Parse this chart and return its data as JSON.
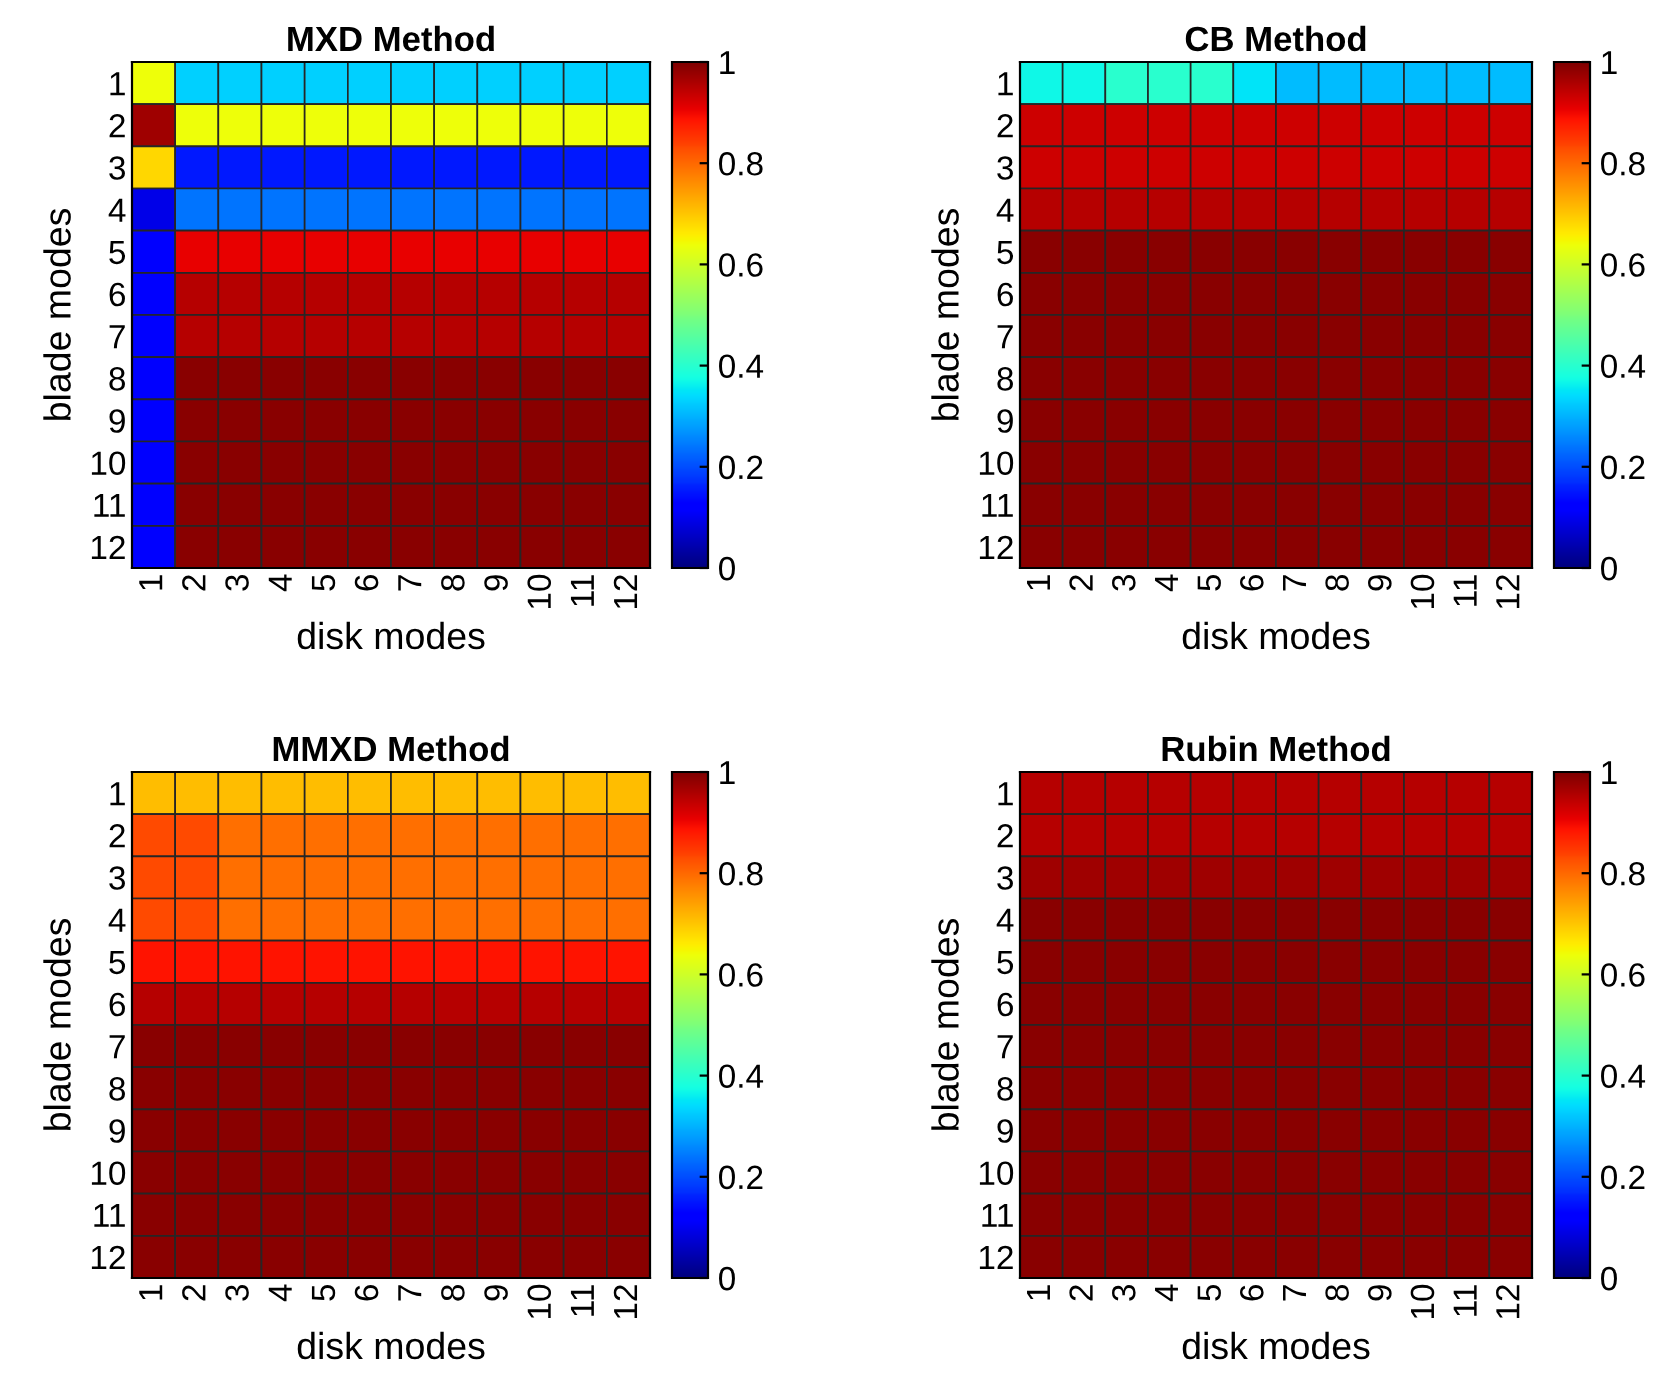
{
  "chart_data": [
    {
      "type": "heatmap",
      "title": "MXD Method",
      "xlabel": "disk modes",
      "ylabel": "blade modes",
      "categories": [
        "1",
        "2",
        "3",
        "4",
        "5",
        "6",
        "7",
        "8",
        "9",
        "10",
        "11",
        "12"
      ],
      "y_categories": [
        "1",
        "2",
        "3",
        "4",
        "5",
        "6",
        "7",
        "8",
        "9",
        "10",
        "11",
        "12"
      ],
      "clim": [
        0,
        1
      ],
      "cticks": [
        0,
        0.2,
        0.4,
        0.6,
        0.8,
        1
      ],
      "cells": [
        [
          0.64,
          0.33,
          0.33,
          0.33,
          0.33,
          0.33,
          0.33,
          0.33,
          0.33,
          0.33,
          0.33,
          0.33
        ],
        [
          0.97,
          0.64,
          0.64,
          0.64,
          0.64,
          0.64,
          0.64,
          0.64,
          0.64,
          0.64,
          0.64,
          0.64
        ],
        [
          0.68,
          0.15,
          0.15,
          0.15,
          0.15,
          0.15,
          0.15,
          0.15,
          0.15,
          0.15,
          0.15,
          0.15
        ],
        [
          0.09,
          0.24,
          0.24,
          0.24,
          0.24,
          0.24,
          0.24,
          0.24,
          0.24,
          0.24,
          0.24,
          0.24
        ],
        [
          0.12,
          0.91,
          0.91,
          0.91,
          0.91,
          0.91,
          0.91,
          0.91,
          0.91,
          0.91,
          0.91,
          0.91
        ],
        [
          0.12,
          0.95,
          0.95,
          0.95,
          0.95,
          0.95,
          0.95,
          0.95,
          0.95,
          0.95,
          0.95,
          0.95
        ],
        [
          0.12,
          0.95,
          0.95,
          0.95,
          0.95,
          0.95,
          0.95,
          0.95,
          0.95,
          0.95,
          0.95,
          0.95
        ],
        [
          0.12,
          0.99,
          0.99,
          0.99,
          0.99,
          0.99,
          0.99,
          0.99,
          0.99,
          0.99,
          0.99,
          0.99
        ],
        [
          0.12,
          0.99,
          0.99,
          0.99,
          0.99,
          0.99,
          0.99,
          0.99,
          0.99,
          0.99,
          0.99,
          0.99
        ],
        [
          0.12,
          0.99,
          0.99,
          0.99,
          0.99,
          0.99,
          0.99,
          0.99,
          0.99,
          0.99,
          0.99,
          0.99
        ],
        [
          0.12,
          0.99,
          0.99,
          0.99,
          0.99,
          0.99,
          0.99,
          0.99,
          0.99,
          0.99,
          0.99,
          0.99
        ],
        [
          0.12,
          0.99,
          0.99,
          0.99,
          0.99,
          0.99,
          0.99,
          0.99,
          0.99,
          0.99,
          0.99,
          0.99
        ]
      ]
    },
    {
      "type": "heatmap",
      "title": "CB Method",
      "xlabel": "disk modes",
      "ylabel": "blade modes",
      "categories": [
        "1",
        "2",
        "3",
        "4",
        "5",
        "6",
        "7",
        "8",
        "9",
        "10",
        "11",
        "12"
      ],
      "y_categories": [
        "1",
        "2",
        "3",
        "4",
        "5",
        "6",
        "7",
        "8",
        "9",
        "10",
        "11",
        "12"
      ],
      "clim": [
        0,
        1
      ],
      "cticks": [
        0,
        0.2,
        0.4,
        0.6,
        0.8,
        1
      ],
      "cells": [
        [
          0.37,
          0.37,
          0.4,
          0.4,
          0.4,
          0.35,
          0.31,
          0.31,
          0.31,
          0.31,
          0.31,
          0.31
        ],
        [
          0.93,
          0.93,
          0.93,
          0.93,
          0.93,
          0.93,
          0.93,
          0.93,
          0.93,
          0.93,
          0.93,
          0.93
        ],
        [
          0.93,
          0.93,
          0.93,
          0.93,
          0.93,
          0.93,
          0.93,
          0.93,
          0.93,
          0.93,
          0.93,
          0.93
        ],
        [
          0.95,
          0.95,
          0.95,
          0.95,
          0.95,
          0.95,
          0.95,
          0.95,
          0.95,
          0.95,
          0.95,
          0.95
        ],
        [
          0.99,
          0.99,
          0.99,
          0.99,
          0.99,
          0.99,
          0.99,
          0.99,
          0.99,
          0.99,
          0.99,
          0.99
        ],
        [
          0.99,
          0.99,
          0.99,
          0.99,
          0.99,
          0.99,
          0.99,
          0.99,
          0.99,
          0.99,
          0.99,
          0.99
        ],
        [
          0.99,
          0.99,
          0.99,
          0.99,
          0.99,
          0.99,
          0.99,
          0.99,
          0.99,
          0.99,
          0.99,
          0.99
        ],
        [
          0.99,
          0.99,
          0.99,
          0.99,
          0.99,
          0.99,
          0.99,
          0.99,
          0.99,
          0.99,
          0.99,
          0.99
        ],
        [
          0.99,
          0.99,
          0.99,
          0.99,
          0.99,
          0.99,
          0.99,
          0.99,
          0.99,
          0.99,
          0.99,
          0.99
        ],
        [
          0.99,
          0.99,
          0.99,
          0.99,
          0.99,
          0.99,
          0.99,
          0.99,
          0.99,
          0.99,
          0.99,
          0.99
        ],
        [
          0.99,
          0.99,
          0.99,
          0.99,
          0.99,
          0.99,
          0.99,
          0.99,
          0.99,
          0.99,
          0.99,
          0.99
        ],
        [
          0.99,
          0.99,
          0.99,
          0.99,
          0.99,
          0.99,
          0.99,
          0.99,
          0.99,
          0.99,
          0.99,
          0.99
        ]
      ]
    },
    {
      "type": "heatmap",
      "title": "MMXD Method",
      "xlabel": "disk modes",
      "ylabel": "blade modes",
      "categories": [
        "1",
        "2",
        "3",
        "4",
        "5",
        "6",
        "7",
        "8",
        "9",
        "10",
        "11",
        "12"
      ],
      "y_categories": [
        "1",
        "2",
        "3",
        "4",
        "5",
        "6",
        "7",
        "8",
        "9",
        "10",
        "11",
        "12"
      ],
      "clim": [
        0,
        1
      ],
      "cticks": [
        0,
        0.2,
        0.4,
        0.6,
        0.8,
        1
      ],
      "cells": [
        [
          0.71,
          0.71,
          0.71,
          0.71,
          0.71,
          0.71,
          0.71,
          0.71,
          0.71,
          0.71,
          0.71,
          0.71
        ],
        [
          0.83,
          0.83,
          0.79,
          0.79,
          0.79,
          0.79,
          0.79,
          0.79,
          0.79,
          0.79,
          0.79,
          0.79
        ],
        [
          0.83,
          0.83,
          0.79,
          0.79,
          0.79,
          0.79,
          0.79,
          0.79,
          0.79,
          0.79,
          0.79,
          0.79
        ],
        [
          0.83,
          0.83,
          0.79,
          0.79,
          0.79,
          0.79,
          0.79,
          0.79,
          0.79,
          0.79,
          0.79,
          0.79
        ],
        [
          0.89,
          0.89,
          0.89,
          0.89,
          0.89,
          0.89,
          0.89,
          0.89,
          0.89,
          0.89,
          0.89,
          0.89
        ],
        [
          0.95,
          0.95,
          0.95,
          0.95,
          0.95,
          0.95,
          0.95,
          0.95,
          0.95,
          0.95,
          0.95,
          0.95
        ],
        [
          0.99,
          0.99,
          0.99,
          0.99,
          0.99,
          0.99,
          0.99,
          0.99,
          0.99,
          0.99,
          0.99,
          0.99
        ],
        [
          0.99,
          0.99,
          0.99,
          0.99,
          0.99,
          0.99,
          0.99,
          0.99,
          0.99,
          0.99,
          0.99,
          0.99
        ],
        [
          0.99,
          0.99,
          0.99,
          0.99,
          0.99,
          0.99,
          0.99,
          0.99,
          0.99,
          0.99,
          0.99,
          0.99
        ],
        [
          0.99,
          0.99,
          0.99,
          0.99,
          0.99,
          0.99,
          0.99,
          0.99,
          0.99,
          0.99,
          0.99,
          0.99
        ],
        [
          0.99,
          0.99,
          0.99,
          0.99,
          0.99,
          0.99,
          0.99,
          0.99,
          0.99,
          0.99,
          0.99,
          0.99
        ],
        [
          0.99,
          0.99,
          0.99,
          0.99,
          0.99,
          0.99,
          0.99,
          0.99,
          0.99,
          0.99,
          0.99,
          0.99
        ]
      ]
    },
    {
      "type": "heatmap",
      "title": "Rubin Method",
      "xlabel": "disk modes",
      "ylabel": "blade modes",
      "categories": [
        "1",
        "2",
        "3",
        "4",
        "5",
        "6",
        "7",
        "8",
        "9",
        "10",
        "11",
        "12"
      ],
      "y_categories": [
        "1",
        "2",
        "3",
        "4",
        "5",
        "6",
        "7",
        "8",
        "9",
        "10",
        "11",
        "12"
      ],
      "clim": [
        0,
        1
      ],
      "cticks": [
        0,
        0.2,
        0.4,
        0.6,
        0.8,
        1
      ],
      "cells": [
        [
          0.95,
          0.95,
          0.95,
          0.95,
          0.95,
          0.95,
          0.95,
          0.95,
          0.95,
          0.95,
          0.95,
          0.95
        ],
        [
          0.95,
          0.95,
          0.95,
          0.95,
          0.95,
          0.95,
          0.95,
          0.95,
          0.95,
          0.95,
          0.95,
          0.95
        ],
        [
          0.97,
          0.97,
          0.97,
          0.97,
          0.97,
          0.97,
          0.97,
          0.97,
          0.97,
          0.97,
          0.97,
          0.97
        ],
        [
          0.99,
          0.99,
          0.99,
          0.99,
          0.99,
          0.99,
          0.99,
          0.99,
          0.99,
          0.99,
          0.99,
          0.99
        ],
        [
          0.99,
          0.99,
          0.99,
          0.99,
          0.99,
          0.99,
          0.99,
          0.99,
          0.99,
          0.99,
          0.99,
          0.99
        ],
        [
          0.99,
          0.99,
          0.99,
          0.99,
          0.99,
          0.99,
          0.99,
          0.99,
          0.99,
          0.99,
          0.99,
          0.99
        ],
        [
          0.99,
          0.99,
          0.99,
          0.99,
          0.99,
          0.99,
          0.99,
          0.99,
          0.99,
          0.99,
          0.99,
          0.99
        ],
        [
          0.99,
          0.99,
          0.99,
          0.99,
          0.99,
          0.99,
          0.99,
          0.99,
          0.99,
          0.99,
          0.99,
          0.99
        ],
        [
          0.99,
          0.99,
          0.99,
          0.99,
          0.99,
          0.99,
          0.99,
          0.99,
          0.99,
          0.99,
          0.99,
          0.99
        ],
        [
          0.99,
          0.99,
          0.99,
          0.99,
          0.99,
          0.99,
          0.99,
          0.99,
          0.99,
          0.99,
          0.99,
          0.99
        ],
        [
          0.99,
          0.99,
          0.99,
          0.99,
          0.99,
          0.99,
          0.99,
          0.99,
          0.99,
          0.99,
          0.99,
          0.99
        ],
        [
          0.99,
          0.99,
          0.99,
          0.99,
          0.99,
          0.99,
          0.99,
          0.99,
          0.99,
          0.99,
          0.99,
          0.99
        ]
      ]
    }
  ]
}
